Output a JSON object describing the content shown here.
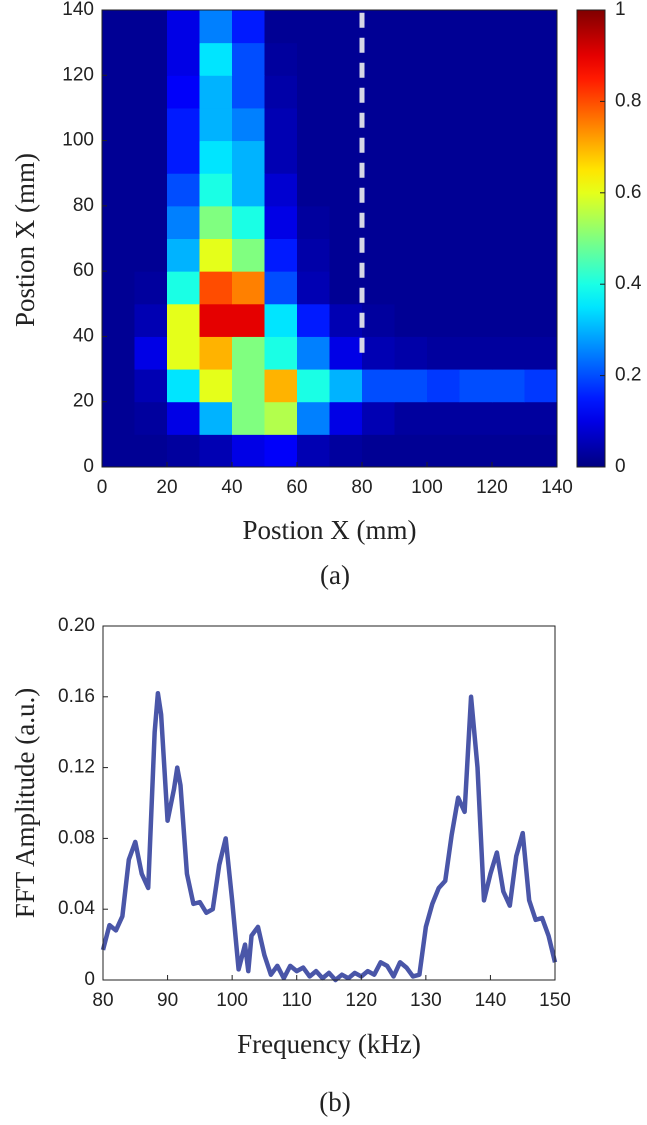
{
  "chart_data": [
    {
      "type": "heatmap",
      "colormap": "jet",
      "ylabel": "Postion X (mm)",
      "xlabel": "Postion X (mm)",
      "caption": "(a)",
      "x": [
        5,
        15,
        25,
        35,
        45,
        55,
        65,
        75,
        85,
        95,
        105,
        115,
        125,
        135
      ],
      "y": [
        5,
        15,
        25,
        35,
        45,
        55,
        65,
        75,
        85,
        95,
        105,
        115,
        125,
        135
      ],
      "z": [
        [
          0.02,
          0.02,
          0.03,
          0.05,
          0.1,
          0.12,
          0.05,
          0.03,
          0.02,
          0.02,
          0.02,
          0.02,
          0.02,
          0.02
        ],
        [
          0.02,
          0.03,
          0.1,
          0.3,
          0.5,
          0.55,
          0.25,
          0.1,
          0.05,
          0.03,
          0.03,
          0.03,
          0.03,
          0.03
        ],
        [
          0.02,
          0.05,
          0.35,
          0.6,
          0.5,
          0.7,
          0.4,
          0.3,
          0.2,
          0.2,
          0.18,
          0.2,
          0.2,
          0.18
        ],
        [
          0.02,
          0.1,
          0.6,
          0.7,
          0.5,
          0.4,
          0.25,
          0.1,
          0.05,
          0.04,
          0.03,
          0.03,
          0.03,
          0.03
        ],
        [
          0.02,
          0.05,
          0.6,
          0.9,
          0.9,
          0.35,
          0.15,
          0.05,
          0.03,
          0.02,
          0.02,
          0.02,
          0.02,
          0.02
        ],
        [
          0.02,
          0.03,
          0.4,
          0.8,
          0.75,
          0.2,
          0.05,
          0.02,
          0.02,
          0.02,
          0.02,
          0.02,
          0.02,
          0.02
        ],
        [
          0.02,
          0.02,
          0.3,
          0.6,
          0.5,
          0.15,
          0.04,
          0.02,
          0.02,
          0.02,
          0.02,
          0.02,
          0.02,
          0.02
        ],
        [
          0.02,
          0.02,
          0.25,
          0.5,
          0.4,
          0.1,
          0.03,
          0.02,
          0.02,
          0.02,
          0.02,
          0.02,
          0.02,
          0.02
        ],
        [
          0.02,
          0.02,
          0.2,
          0.4,
          0.3,
          0.08,
          0.02,
          0.02,
          0.02,
          0.02,
          0.02,
          0.02,
          0.02,
          0.02
        ],
        [
          0.02,
          0.02,
          0.15,
          0.35,
          0.3,
          0.05,
          0.02,
          0.02,
          0.02,
          0.02,
          0.02,
          0.02,
          0.02,
          0.02
        ],
        [
          0.02,
          0.02,
          0.15,
          0.3,
          0.25,
          0.05,
          0.02,
          0.02,
          0.02,
          0.02,
          0.02,
          0.02,
          0.02,
          0.02
        ],
        [
          0.02,
          0.02,
          0.12,
          0.3,
          0.2,
          0.04,
          0.02,
          0.02,
          0.02,
          0.02,
          0.02,
          0.02,
          0.02,
          0.02
        ],
        [
          0.02,
          0.02,
          0.1,
          0.35,
          0.2,
          0.03,
          0.02,
          0.02,
          0.02,
          0.02,
          0.02,
          0.02,
          0.02,
          0.02
        ],
        [
          0.02,
          0.02,
          0.1,
          0.25,
          0.15,
          0.02,
          0.02,
          0.02,
          0.02,
          0.02,
          0.02,
          0.02,
          0.02,
          0.02
        ]
      ],
      "xlim": [
        0,
        140
      ],
      "ylim": [
        0,
        140
      ],
      "xticks": [
        0,
        20,
        40,
        60,
        80,
        100,
        120,
        140
      ],
      "yticks": [
        0,
        20,
        40,
        60,
        80,
        100,
        120,
        140
      ],
      "colorbar": {
        "lim": [
          0,
          1
        ],
        "ticks": [
          0,
          0.2,
          0.4,
          0.6,
          0.8,
          1
        ]
      },
      "dashed_line": {
        "x": 80,
        "y": [
          35,
          140
        ],
        "color": "#d4d6e6"
      }
    },
    {
      "type": "line",
      "color": "#4a56a8",
      "xlabel": "Frequency (kHz)",
      "ylabel": "FFT Amplitude (a.u.)",
      "caption": "(b)",
      "x": [
        80,
        81,
        82,
        83,
        84,
        85,
        86,
        87,
        88,
        88.5,
        89,
        90,
        91,
        91.5,
        92,
        93,
        94,
        95,
        96,
        97,
        98,
        99,
        100,
        101,
        102,
        102.5,
        103,
        104,
        105,
        106,
        107,
        108,
        109,
        110,
        111,
        112,
        113,
        114,
        115,
        116,
        117,
        118,
        119,
        120,
        121,
        122,
        123,
        124,
        125,
        126,
        127,
        128,
        129,
        130,
        131,
        132,
        133,
        134,
        135,
        136,
        137,
        138,
        139,
        140,
        141,
        142,
        143,
        144,
        145,
        146,
        147,
        148,
        149,
        150
      ],
      "values": [
        0.017,
        0.031,
        0.028,
        0.036,
        0.068,
        0.078,
        0.06,
        0.052,
        0.14,
        0.162,
        0.15,
        0.09,
        0.108,
        0.12,
        0.11,
        0.06,
        0.043,
        0.044,
        0.038,
        0.04,
        0.065,
        0.08,
        0.045,
        0.006,
        0.02,
        0.005,
        0.025,
        0.03,
        0.014,
        0.003,
        0.008,
        0.001,
        0.008,
        0.005,
        0.007,
        0.002,
        0.005,
        0.001,
        0.004,
        0,
        0.003,
        0.001,
        0.004,
        0.002,
        0.005,
        0.003,
        0.01,
        0.008,
        0.002,
        0.01,
        0.007,
        0.002,
        0.003,
        0.03,
        0.043,
        0.052,
        0.056,
        0.082,
        0.103,
        0.095,
        0.16,
        0.12,
        0.045,
        0.06,
        0.072,
        0.05,
        0.042,
        0.07,
        0.083,
        0.045,
        0.034,
        0.035,
        0.025,
        0.01
      ],
      "xlim": [
        80,
        150
      ],
      "ylim": [
        0,
        0.2
      ],
      "xticks": [
        80,
        90,
        100,
        110,
        120,
        130,
        140,
        150
      ],
      "yticks": [
        0,
        0.04,
        0.08,
        0.12,
        0.16,
        {
          "value": 0.2,
          "label": "0.20"
        }
      ]
    }
  ]
}
